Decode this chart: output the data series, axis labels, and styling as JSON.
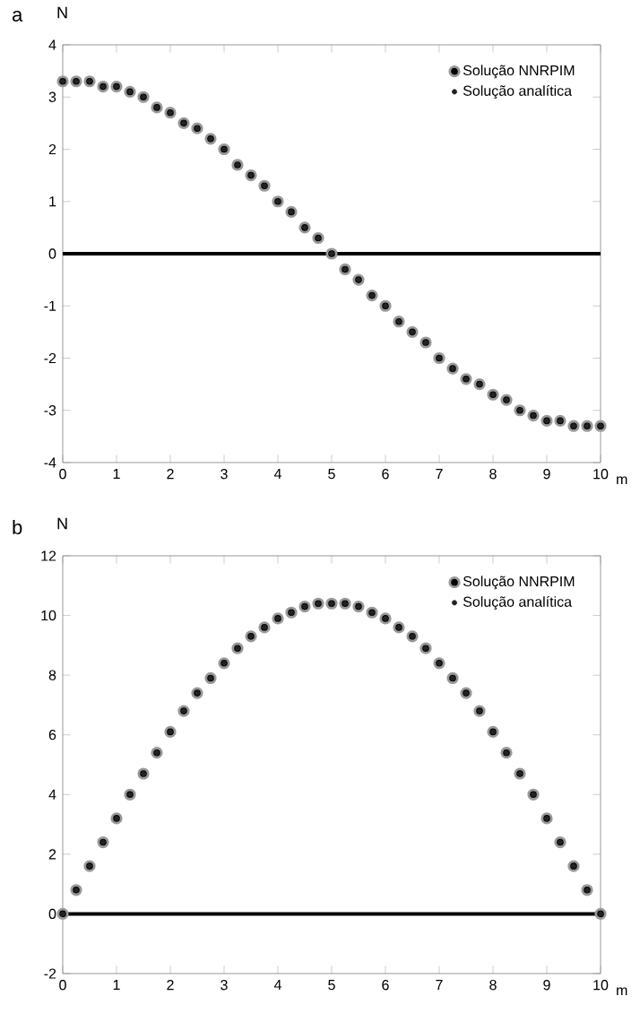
{
  "chart_data": [
    {
      "type": "scatter",
      "title": "a",
      "xlabel": "m",
      "ylabel": "N",
      "xlim": [
        0,
        10
      ],
      "ylim": [
        -4,
        4
      ],
      "xticks": [
        0,
        1,
        2,
        3,
        4,
        5,
        6,
        7,
        8,
        9,
        10
      ],
      "yticks": [
        -4,
        -3,
        -2,
        -1,
        0,
        1,
        2,
        3,
        4
      ],
      "legend": "top right",
      "grid": false,
      "marker": "circle",
      "x": [
        0,
        0.25,
        0.5,
        0.75,
        1,
        1.25,
        1.5,
        1.75,
        2,
        2.25,
        2.5,
        2.75,
        3,
        3.25,
        3.5,
        3.75,
        4,
        4.25,
        4.5,
        4.75,
        5,
        5.25,
        5.5,
        5.75,
        6,
        6.25,
        6.5,
        6.75,
        7,
        7.25,
        7.5,
        7.75,
        8,
        8.25,
        8.5,
        8.75,
        9,
        9.25,
        9.5,
        9.75,
        10
      ],
      "ref_lines": [
        {
          "axis": "y",
          "value": 0,
          "color": "#000000"
        }
      ],
      "series": [
        {
          "name": "Solução NNRPIM",
          "color": "#999999",
          "values": [
            3.3,
            3.3,
            3.3,
            3.2,
            3.2,
            3.1,
            3.0,
            2.8,
            2.7,
            2.5,
            2.4,
            2.2,
            2.0,
            1.7,
            1.5,
            1.3,
            1.0,
            0.8,
            0.5,
            0.3,
            0.0,
            -0.3,
            -0.5,
            -0.8,
            -1.0,
            -1.3,
            -1.5,
            -1.7,
            -2.0,
            -2.2,
            -2.4,
            -2.5,
            -2.7,
            -2.8,
            -3.0,
            -3.1,
            -3.2,
            -3.2,
            -3.3,
            -3.3,
            -3.3
          ]
        },
        {
          "name": "Solução analítica",
          "color": "#222222",
          "values": [
            3.3,
            3.3,
            3.3,
            3.2,
            3.2,
            3.1,
            3.0,
            2.8,
            2.7,
            2.5,
            2.4,
            2.2,
            2.0,
            1.7,
            1.5,
            1.3,
            1.0,
            0.8,
            0.5,
            0.3,
            0.0,
            -0.3,
            -0.5,
            -0.8,
            -1.0,
            -1.3,
            -1.5,
            -1.7,
            -2.0,
            -2.2,
            -2.4,
            -2.5,
            -2.7,
            -2.8,
            -3.0,
            -3.1,
            -3.2,
            -3.2,
            -3.3,
            -3.3,
            -3.3
          ]
        }
      ]
    },
    {
      "type": "scatter",
      "title": "b",
      "xlabel": "m",
      "ylabel": "N",
      "xlim": [
        0,
        10
      ],
      "ylim": [
        -2,
        12
      ],
      "xticks": [
        0,
        1,
        2,
        3,
        4,
        5,
        6,
        7,
        8,
        9,
        10
      ],
      "yticks": [
        -2,
        0,
        2,
        4,
        6,
        8,
        10,
        12
      ],
      "legend": "top right",
      "grid": false,
      "marker": "circle",
      "x": [
        0,
        0.25,
        0.5,
        0.75,
        1,
        1.25,
        1.5,
        1.75,
        2,
        2.25,
        2.5,
        2.75,
        3,
        3.25,
        3.5,
        3.75,
        4,
        4.25,
        4.5,
        4.75,
        5,
        5.25,
        5.5,
        5.75,
        6,
        6.25,
        6.5,
        6.75,
        7,
        7.25,
        7.5,
        7.75,
        8,
        8.25,
        8.5,
        8.75,
        9,
        9.25,
        9.5,
        9.75,
        10
      ],
      "ref_lines": [
        {
          "axis": "y",
          "value": 0,
          "color": "#000000"
        }
      ],
      "series": [
        {
          "name": "Solução NNRPIM",
          "color": "#999999",
          "values": [
            0,
            0.8,
            1.6,
            2.4,
            3.2,
            4.0,
            4.7,
            5.4,
            6.1,
            6.8,
            7.4,
            7.9,
            8.4,
            8.9,
            9.3,
            9.6,
            9.9,
            10.1,
            10.3,
            10.4,
            10.4,
            10.4,
            10.3,
            10.1,
            9.9,
            9.6,
            9.3,
            8.9,
            8.4,
            7.9,
            7.4,
            6.8,
            6.1,
            5.4,
            4.7,
            4.0,
            3.2,
            2.4,
            1.6,
            0.8,
            0
          ]
        },
        {
          "name": "Solução analítica",
          "color": "#222222",
          "values": [
            0,
            0.8,
            1.6,
            2.4,
            3.2,
            4.0,
            4.7,
            5.4,
            6.1,
            6.8,
            7.4,
            7.9,
            8.4,
            8.9,
            9.3,
            9.6,
            9.9,
            10.1,
            10.3,
            10.4,
            10.4,
            10.4,
            10.3,
            10.1,
            9.9,
            9.6,
            9.3,
            8.9,
            8.4,
            7.9,
            7.4,
            6.8,
            6.1,
            5.4,
            4.7,
            4.0,
            3.2,
            2.4,
            1.6,
            0.8,
            0
          ]
        }
      ]
    }
  ]
}
